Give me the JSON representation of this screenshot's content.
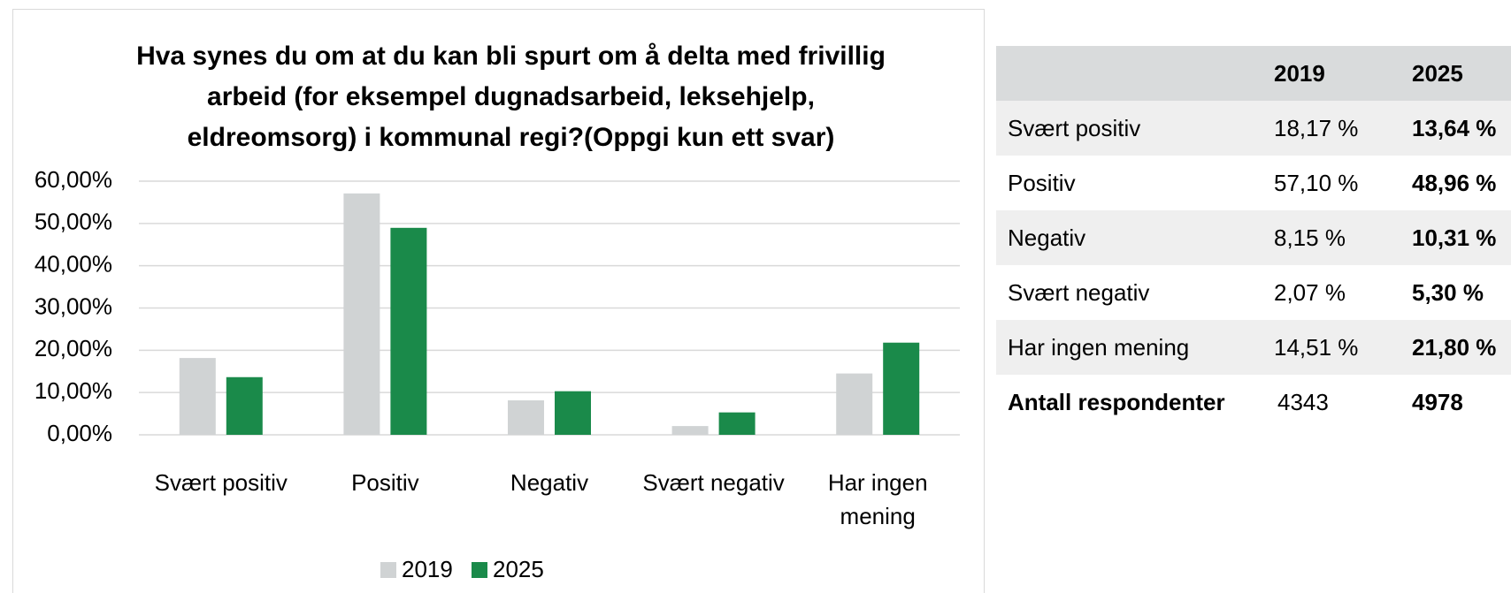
{
  "chart_data": {
    "type": "bar",
    "title": "Hva synes du om at du kan bli spurt om å delta med frivillig arbeid (for eksempel dugnadsarbeid, leksehjelp, eldreomsorg) i kommunal regi?(Oppgi kun ett svar)",
    "categories": [
      "Svært positiv",
      "Positiv",
      "Negativ",
      "Svært negativ",
      "Har ingen mening"
    ],
    "series": [
      {
        "name": "2019",
        "color": "#d0d3d4",
        "values": [
          18.17,
          57.1,
          8.15,
          2.07,
          14.51
        ]
      },
      {
        "name": "2025",
        "color": "#1a8a4a",
        "values": [
          13.64,
          48.96,
          10.31,
          5.3,
          21.8
        ]
      }
    ],
    "ylim": [
      0,
      60
    ],
    "yticks": [
      {
        "value": 0,
        "label": "0,00%"
      },
      {
        "value": 10,
        "label": "10,00%"
      },
      {
        "value": 20,
        "label": "20,00%"
      },
      {
        "value": 30,
        "label": "30,00%"
      },
      {
        "value": 40,
        "label": "40,00%"
      },
      {
        "value": 50,
        "label": "50,00%"
      },
      {
        "value": 60,
        "label": "60,00%"
      }
    ],
    "grid": true,
    "legend": "bottom"
  },
  "table": {
    "columns": [
      "2019",
      "2025"
    ],
    "rows": [
      [
        "Svært positiv",
        "18,17 %",
        "13,64 %"
      ],
      [
        "Positiv",
        "57,10 %",
        "48,96 %"
      ],
      [
        "Negativ",
        "8,15 %",
        "10,31 %"
      ],
      [
        "Svært negativ",
        "2,07 %",
        "5,30 %"
      ],
      [
        "Har ingen mening",
        "14,51 %",
        "21,80 %"
      ],
      [
        "Antall respondenter",
        4343,
        4978
      ]
    ]
  }
}
